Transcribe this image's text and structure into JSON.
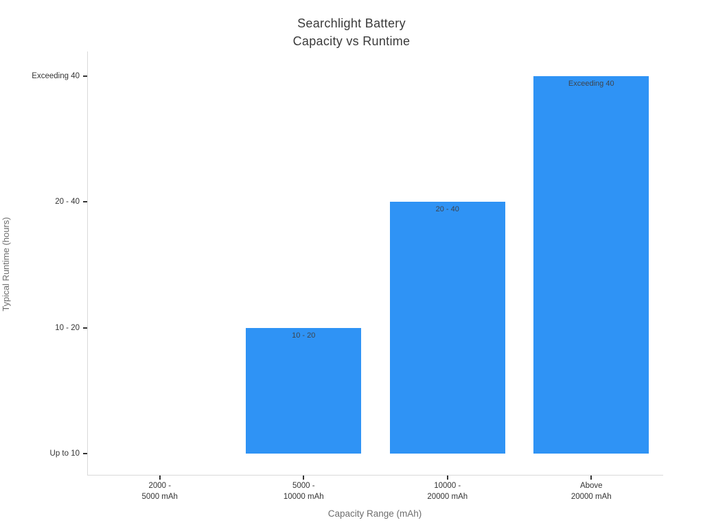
{
  "chart_data": {
    "type": "bar",
    "title_lines": [
      "Searchlight Battery",
      "Capacity vs Runtime"
    ],
    "xlabel": "Capacity Range (mAh)",
    "ylabel": "Typical Runtime (hours)",
    "categories": [
      [
        "2000 -",
        "5000 mAh"
      ],
      [
        "5000 -",
        "10000 mAh"
      ],
      [
        "10000 -",
        "20000 mAh"
      ],
      [
        "Above",
        "20000 mAh"
      ]
    ],
    "ytick_labels": [
      "Up to 10",
      "10 - 20",
      "20 - 40",
      "Exceeding 40"
    ],
    "values": [
      0,
      1,
      2,
      3
    ],
    "value_labels": [
      "Up to 10",
      "10 - 20",
      "20 - 40",
      "Exceeding 40"
    ],
    "bar_labels": [
      "",
      "10 - 20",
      "20 - 40",
      "Exceeding 40"
    ],
    "ylim": [
      -0.17,
      3.19
    ],
    "grid": false,
    "legend_position": "none",
    "colors": {
      "bar": "#2F93F5",
      "bar_label_text": "#3d444d",
      "tick_text": "#333333",
      "axis_title_text": "#6e6e6e",
      "title_text": "#3a3a3a",
      "spine": "#d9d9d9",
      "tick_mark": "#333333",
      "background": "#ffffff"
    }
  }
}
